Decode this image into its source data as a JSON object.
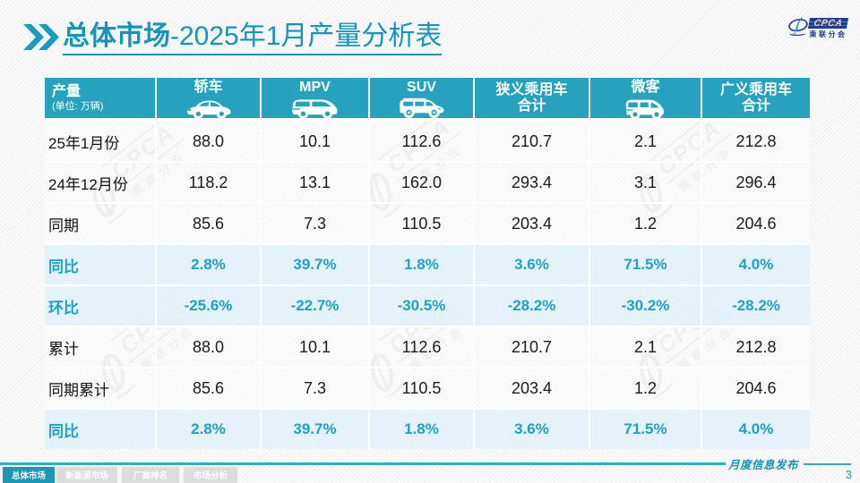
{
  "accent_colors": {
    "teal": "#1F9DBB",
    "header_teal": "#26A2BE",
    "navy": "#1C3E8E"
  },
  "header": {
    "title_primary": "总体市场",
    "title_secondary": "-2025年1月产量分析表"
  },
  "logo": {
    "acronym": "CPCA",
    "subtitle": "乘联分会"
  },
  "watermark": {
    "acronym": "CPCA",
    "subtitle": "乘联分会"
  },
  "table": {
    "corner": {
      "title": "产量",
      "unit": "(单位: 万辆)"
    },
    "columns": [
      {
        "label": "轿车",
        "icon": "sedan-car-icon"
      },
      {
        "label": "MPV",
        "icon": "mpv-car-icon"
      },
      {
        "label": "SUV",
        "icon": "suv-car-icon"
      },
      {
        "label": "狭义乘用车",
        "label2": "合计",
        "icon": null
      },
      {
        "label": "微客",
        "icon": "microvan-car-icon"
      },
      {
        "label": "广义乘用车",
        "label2": "合计",
        "icon": null
      }
    ],
    "rows": [
      {
        "label": "25年1月份",
        "kind": "normal",
        "values": [
          "88.0",
          "10.1",
          "112.6",
          "210.7",
          "2.1",
          "212.8"
        ]
      },
      {
        "label": "24年12月份",
        "kind": "normal",
        "values": [
          "118.2",
          "13.1",
          "162.0",
          "293.4",
          "3.1",
          "296.4"
        ]
      },
      {
        "label": "同期",
        "kind": "normal",
        "values": [
          "85.6",
          "7.3",
          "110.5",
          "203.4",
          "1.2",
          "204.6"
        ]
      },
      {
        "label": "同比",
        "kind": "percent",
        "values": [
          "2.8%",
          "39.7%",
          "1.8%",
          "3.6%",
          "71.5%",
          "4.0%"
        ]
      },
      {
        "label": "环比",
        "kind": "percent",
        "values": [
          "-25.6%",
          "-22.7%",
          "-30.5%",
          "-28.2%",
          "-30.2%",
          "-28.2%"
        ]
      },
      {
        "label": "累计",
        "kind": "normal",
        "values": [
          "88.0",
          "10.1",
          "112.6",
          "210.7",
          "2.1",
          "212.8"
        ]
      },
      {
        "label": "同期累计",
        "kind": "normal",
        "values": [
          "85.6",
          "7.3",
          "110.5",
          "203.4",
          "1.2",
          "204.6"
        ]
      },
      {
        "label": "同比",
        "kind": "percent",
        "values": [
          "2.8%",
          "39.7%",
          "1.8%",
          "3.6%",
          "71.5%",
          "4.0%"
        ]
      }
    ]
  },
  "chart_data": {
    "type": "table",
    "title": "总体市场-2025年1月产量分析表",
    "unit": "万辆",
    "categories": [
      "轿车",
      "MPV",
      "SUV",
      "狭义乘用车合计",
      "微客",
      "广义乘用车合计"
    ],
    "series": [
      {
        "name": "25年1月份",
        "values": [
          88.0,
          10.1,
          112.6,
          210.7,
          2.1,
          212.8
        ]
      },
      {
        "name": "24年12月份",
        "values": [
          118.2,
          13.1,
          162.0,
          293.4,
          3.1,
          296.4
        ]
      },
      {
        "name": "同期",
        "values": [
          85.6,
          7.3,
          110.5,
          203.4,
          1.2,
          204.6
        ]
      },
      {
        "name": "同比",
        "values": [
          "2.8%",
          "39.7%",
          "1.8%",
          "3.6%",
          "71.5%",
          "4.0%"
        ]
      },
      {
        "name": "环比",
        "values": [
          "-25.6%",
          "-22.7%",
          "-30.5%",
          "-28.2%",
          "-30.2%",
          "-28.2%"
        ]
      },
      {
        "name": "累计",
        "values": [
          88.0,
          10.1,
          112.6,
          210.7,
          2.1,
          212.8
        ]
      },
      {
        "name": "同期累计",
        "values": [
          85.6,
          7.3,
          110.5,
          203.4,
          1.2,
          204.6
        ]
      },
      {
        "name": "同比2",
        "values": [
          "2.8%",
          "39.7%",
          "1.8%",
          "3.6%",
          "71.5%",
          "4.0%"
        ]
      }
    ]
  },
  "footer": {
    "tabs": [
      {
        "label": "总体市场",
        "active": true
      },
      {
        "label": "新能源市场",
        "active": false
      },
      {
        "label": "厂商排名",
        "active": false
      },
      {
        "label": "市场分析",
        "active": false
      }
    ],
    "right_label": "月度信息发布",
    "page_number": "3"
  }
}
